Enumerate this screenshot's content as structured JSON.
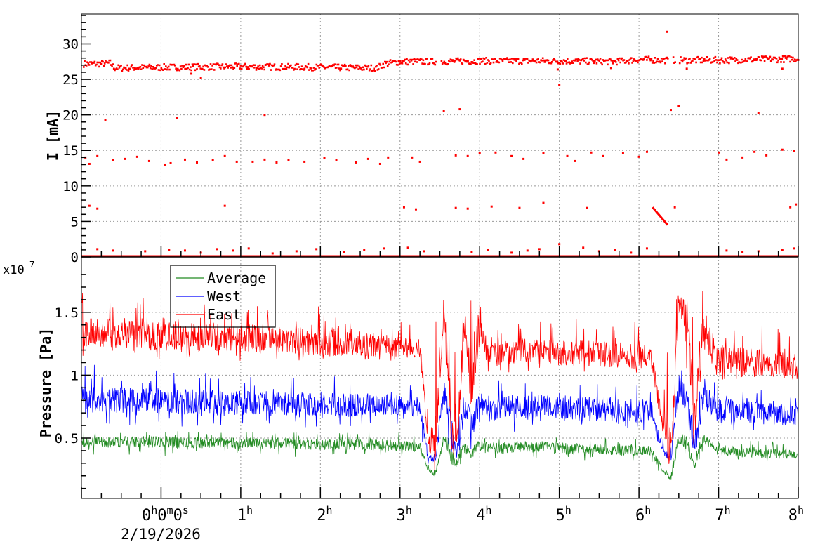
{
  "chart_data": [
    {
      "type": "scatter",
      "panel": "current",
      "ylabel": "I [mA]",
      "ylim": [
        0,
        34.2
      ],
      "xlim_hours": [
        -1,
        8
      ],
      "yticks": [
        0,
        5,
        10,
        15,
        20,
        25,
        30
      ],
      "ytick_labels": [
        "0",
        "5",
        "10",
        "15",
        "20",
        "25",
        "30"
      ],
      "grid": true,
      "color": "#ff0000",
      "main_level": {
        "t": [
          -1,
          -0.75,
          -0.65,
          -0.6,
          0,
          1,
          2,
          2.7,
          2.8,
          3.0,
          3.4,
          3.5,
          4,
          5,
          5.7,
          6.0,
          6.3,
          6.5,
          7,
          8
        ],
        "I": [
          27.2,
          27.2,
          27.3,
          26.6,
          26.7,
          26.8,
          26.7,
          26.6,
          27.2,
          27.5,
          27.5,
          27.5,
          27.6,
          27.6,
          27.5,
          27.8,
          27.7,
          27.7,
          27.7,
          27.9
        ],
        "gaps": [
          [
            3.45,
            3.5
          ],
          [
            6.36,
            6.42
          ],
          [
            6.45,
            6.5
          ]
        ]
      },
      "baseline": 0.1,
      "decay_segment": {
        "t": [
          6.17,
          6.36
        ],
        "I": [
          7.0,
          4.5
        ]
      },
      "points": [
        [
          -0.7,
          19.3
        ],
        [
          0.2,
          19.6
        ],
        [
          1.3,
          20.0
        ],
        [
          0.5,
          25.2
        ],
        [
          0.38,
          25.8
        ],
        [
          3.55,
          20.6
        ],
        [
          3.75,
          20.8
        ],
        [
          5.0,
          24.2
        ],
        [
          4.98,
          26.4
        ],
        [
          6.4,
          20.7
        ],
        [
          6.5,
          21.2
        ],
        [
          7.5,
          20.3
        ],
        [
          6.35,
          31.7
        ],
        [
          5.65,
          26.6
        ],
        [
          7.8,
          26.5
        ],
        [
          6.6,
          26.5
        ],
        [
          -0.95,
          14.0
        ],
        [
          -0.9,
          13.1
        ],
        [
          -0.8,
          14.2
        ],
        [
          -0.6,
          13.6
        ],
        [
          -0.45,
          13.8
        ],
        [
          -0.3,
          14.1
        ],
        [
          -0.15,
          13.5
        ],
        [
          0.05,
          13.0
        ],
        [
          0.12,
          13.2
        ],
        [
          0.3,
          13.7
        ],
        [
          0.45,
          13.3
        ],
        [
          0.65,
          13.6
        ],
        [
          0.8,
          14.2
        ],
        [
          0.95,
          13.4
        ],
        [
          1.15,
          13.4
        ],
        [
          1.3,
          13.7
        ],
        [
          1.45,
          13.3
        ],
        [
          1.6,
          13.6
        ],
        [
          1.8,
          13.4
        ],
        [
          2.05,
          13.9
        ],
        [
          2.2,
          13.6
        ],
        [
          2.45,
          13.3
        ],
        [
          2.6,
          13.8
        ],
        [
          2.75,
          13.1
        ],
        [
          2.85,
          14.0
        ],
        [
          3.15,
          14.0
        ],
        [
          3.25,
          13.4
        ],
        [
          3.7,
          14.3
        ],
        [
          3.85,
          14.2
        ],
        [
          4.0,
          14.6
        ],
        [
          4.2,
          14.7
        ],
        [
          4.4,
          14.2
        ],
        [
          4.55,
          13.8
        ],
        [
          4.8,
          14.6
        ],
        [
          5.1,
          14.2
        ],
        [
          5.2,
          13.5
        ],
        [
          5.4,
          14.7
        ],
        [
          5.55,
          14.2
        ],
        [
          5.8,
          14.6
        ],
        [
          6.0,
          14.1
        ],
        [
          6.1,
          14.8
        ],
        [
          7.0,
          14.7
        ],
        [
          7.1,
          13.7
        ],
        [
          7.3,
          14.0
        ],
        [
          7.45,
          14.8
        ],
        [
          7.6,
          14.3
        ],
        [
          7.8,
          15.1
        ],
        [
          7.95,
          14.9
        ],
        [
          -0.9,
          7.2
        ],
        [
          -0.8,
          6.8
        ],
        [
          0.8,
          7.2
        ],
        [
          3.05,
          7.0
        ],
        [
          3.2,
          6.7
        ],
        [
          3.7,
          6.9
        ],
        [
          3.85,
          6.8
        ],
        [
          4.15,
          7.1
        ],
        [
          4.5,
          6.9
        ],
        [
          4.8,
          7.6
        ],
        [
          5.35,
          6.9
        ],
        [
          6.45,
          7.0
        ],
        [
          7.9,
          7.0
        ],
        [
          7.97,
          7.4
        ],
        [
          -0.8,
          1.1
        ],
        [
          -0.6,
          0.9
        ],
        [
          -0.2,
          0.8
        ],
        [
          0.1,
          1.0
        ],
        [
          0.3,
          0.9
        ],
        [
          0.5,
          0.6
        ],
        [
          0.7,
          1.1
        ],
        [
          0.9,
          0.9
        ],
        [
          1.1,
          1.2
        ],
        [
          1.4,
          0.5
        ],
        [
          1.7,
          0.8
        ],
        [
          1.95,
          1.1
        ],
        [
          2.3,
          0.7
        ],
        [
          2.55,
          1.0
        ],
        [
          2.8,
          1.2
        ],
        [
          3.1,
          1.3
        ],
        [
          3.3,
          0.8
        ],
        [
          3.9,
          0.7
        ],
        [
          4.1,
          1.0
        ],
        [
          4.4,
          0.6
        ],
        [
          4.6,
          0.9
        ],
        [
          4.75,
          1.1
        ],
        [
          5.0,
          1.8
        ],
        [
          5.3,
          1.3
        ],
        [
          5.5,
          0.8
        ],
        [
          5.7,
          1.0
        ],
        [
          5.9,
          0.6
        ],
        [
          6.1,
          1.2
        ],
        [
          7.1,
          0.9
        ],
        [
          7.3,
          0.7
        ],
        [
          7.5,
          0.8
        ],
        [
          7.8,
          1.0
        ],
        [
          7.95,
          1.2
        ]
      ]
    },
    {
      "type": "line",
      "panel": "pressure",
      "ylabel": "Pressure [Pa]",
      "yscale_label": "x10",
      "yscale_exp": "-7",
      "ylim": [
        0.02,
        1.94
      ],
      "yticks": [
        0.5,
        1,
        1.5
      ],
      "ytick_labels": [
        "0.5",
        "1",
        "1.5"
      ],
      "xlim_hours": [
        -1,
        8
      ],
      "grid": true,
      "legend_placement": "top-left",
      "t": [
        -1,
        -0.5,
        0,
        0.5,
        1,
        1.5,
        2,
        2.5,
        3,
        3.25,
        3.35,
        3.45,
        3.55,
        3.65,
        3.72,
        3.8,
        3.9,
        4.0,
        4.1,
        4.5,
        5,
        5.5,
        6,
        6.15,
        6.3,
        6.4,
        6.5,
        6.6,
        6.7,
        6.8,
        7.0,
        7.5,
        8
      ],
      "series": [
        {
          "name": "East",
          "color": "#ff0000",
          "mean": [
            1.35,
            1.33,
            1.32,
            1.3,
            1.3,
            1.28,
            1.27,
            1.25,
            1.22,
            1.22,
            0.5,
            0.45,
            1.55,
            0.6,
            0.5,
            1.4,
            0.9,
            1.45,
            1.15,
            1.2,
            1.18,
            1.17,
            1.15,
            1.15,
            0.6,
            0.45,
            1.55,
            1.5,
            0.55,
            1.4,
            1.1,
            1.1,
            1.05
          ],
          "min": [
            1.15,
            1.15,
            1.12,
            1.12,
            1.1,
            1.1,
            1.1,
            1.1,
            1.08,
            1.05,
            0.42,
            0.38,
            1.3,
            0.45,
            0.45,
            0.9,
            0.75,
            1.0,
            1.0,
            1.0,
            1.0,
            1.0,
            1.0,
            1.0,
            0.5,
            0.4,
            1.4,
            0.9,
            0.45,
            0.9,
            0.95,
            0.95,
            0.95
          ],
          "max": [
            1.7,
            1.65,
            1.75,
            1.6,
            1.6,
            1.55,
            1.6,
            1.55,
            1.45,
            1.4,
            0.7,
            1.5,
            1.65,
            1.65,
            0.9,
            1.65,
            1.6,
            1.7,
            1.4,
            1.45,
            1.45,
            1.45,
            1.45,
            1.35,
            0.8,
            1.5,
            1.65,
            1.65,
            1.6,
            1.7,
            1.6,
            1.45,
            1.3
          ]
        },
        {
          "name": "West",
          "color": "#0000ff",
          "mean": [
            0.8,
            0.8,
            0.8,
            0.78,
            0.78,
            0.78,
            0.77,
            0.76,
            0.76,
            0.75,
            0.35,
            0.32,
            0.9,
            0.5,
            0.4,
            0.75,
            0.6,
            0.8,
            0.72,
            0.75,
            0.74,
            0.73,
            0.72,
            0.72,
            0.4,
            0.33,
            0.9,
            0.85,
            0.4,
            0.8,
            0.72,
            0.7,
            0.68
          ],
          "min": [
            0.6,
            0.6,
            0.6,
            0.58,
            0.58,
            0.58,
            0.58,
            0.58,
            0.6,
            0.55,
            0.28,
            0.28,
            0.6,
            0.35,
            0.3,
            0.5,
            0.4,
            0.55,
            0.55,
            0.55,
            0.55,
            0.55,
            0.55,
            0.55,
            0.33,
            0.28,
            0.6,
            0.45,
            0.3,
            0.5,
            0.55,
            0.55,
            0.55
          ],
          "max": [
            1.1,
            1.05,
            1.05,
            1.05,
            1.0,
            1.0,
            1.0,
            1.0,
            0.95,
            0.9,
            0.45,
            0.5,
            1.0,
            1.0,
            0.6,
            0.95,
            0.9,
            1.0,
            0.95,
            1.0,
            1.0,
            1.0,
            1.0,
            0.9,
            0.5,
            0.45,
            1.05,
            1.05,
            0.6,
            1.05,
            1.0,
            0.95,
            0.9
          ]
        },
        {
          "name": "Average",
          "color": "#228b22",
          "mean": [
            0.47,
            0.47,
            0.47,
            0.46,
            0.46,
            0.46,
            0.45,
            0.45,
            0.44,
            0.43,
            0.25,
            0.22,
            0.5,
            0.35,
            0.3,
            0.42,
            0.38,
            0.45,
            0.42,
            0.43,
            0.42,
            0.41,
            0.4,
            0.4,
            0.25,
            0.18,
            0.5,
            0.45,
            0.3,
            0.5,
            0.4,
            0.38,
            0.37
          ],
          "min": [
            0.35,
            0.35,
            0.35,
            0.35,
            0.35,
            0.35,
            0.35,
            0.35,
            0.35,
            0.35,
            0.2,
            0.18,
            0.45,
            0.28,
            0.25,
            0.3,
            0.28,
            0.35,
            0.3,
            0.33,
            0.33,
            0.32,
            0.32,
            0.3,
            0.2,
            0.14,
            0.4,
            0.3,
            0.2,
            0.4,
            0.32,
            0.3,
            0.3
          ],
          "max": [
            0.55,
            0.55,
            0.56,
            0.55,
            0.55,
            0.55,
            0.55,
            0.55,
            0.55,
            0.5,
            0.3,
            0.3,
            0.6,
            0.58,
            0.4,
            0.55,
            0.5,
            0.55,
            0.52,
            0.52,
            0.52,
            0.5,
            0.5,
            0.48,
            0.3,
            0.25,
            0.6,
            0.58,
            0.4,
            0.6,
            0.5,
            0.48,
            0.46
          ]
        }
      ],
      "legend": [
        "Average",
        "West",
        "East"
      ]
    }
  ],
  "xaxis": {
    "ticks_hours": [
      0,
      1,
      2,
      3,
      4,
      5,
      6,
      7,
      8
    ],
    "tick_labels": [
      {
        "n": "0",
        "u": "h",
        "rest": [
          [
            "0",
            "m"
          ],
          [
            "0",
            "s"
          ]
        ]
      },
      {
        "n": "1",
        "u": "h"
      },
      {
        "n": "2",
        "u": "h"
      },
      {
        "n": "3",
        "u": "h"
      },
      {
        "n": "4",
        "u": "h"
      },
      {
        "n": "5",
        "u": "h"
      },
      {
        "n": "6",
        "u": "h"
      },
      {
        "n": "7",
        "u": "h"
      },
      {
        "n": "8",
        "u": "h"
      }
    ],
    "date": "2/19/2026"
  }
}
